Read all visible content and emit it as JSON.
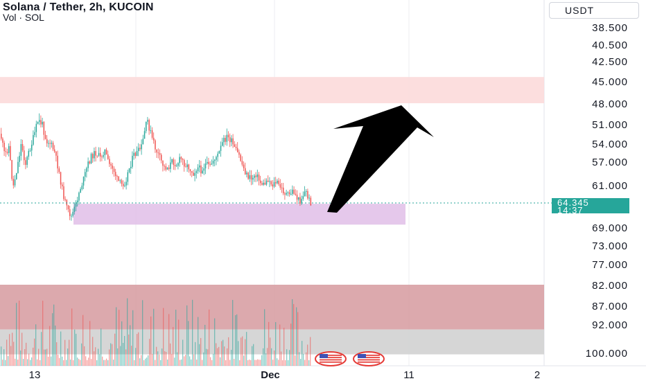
{
  "header": {
    "title": "Solana / Tether, 2h, KUCOIN",
    "subtitle": "Vol · SOL"
  },
  "currency_button": {
    "label": "USDT"
  },
  "price_tag": {
    "price": "64.345",
    "countdown": "14:37"
  },
  "colors": {
    "up": "#26a69a",
    "down": "#ef5350",
    "resistance_zone": "#fcdada",
    "support_zone": "#e1bee7",
    "volume_overlay_red": "#d8a0a4",
    "volume_overlay_grey": "#d2d2d2",
    "arrow": "#000000",
    "price_line": "#26a69a"
  },
  "chart_data": {
    "type": "candlestick",
    "title": "Solana / Tether, 2h, KUCOIN",
    "y_axis_scale": "inverted",
    "y_ticks": [
      "38.500",
      "40.500",
      "42.500",
      "45.000",
      "48.000",
      "51.000",
      "54.000",
      "57.000",
      "61.000",
      "64.345",
      "69.000",
      "73.000",
      "77.000",
      "82.000",
      "87.000",
      "92.000",
      "100.000"
    ],
    "x_ticks": [
      "13",
      "Dec",
      "11",
      "2"
    ],
    "last_price": 64.345,
    "series_path": [
      [
        0,
        52.5
      ],
      [
        6,
        56.0
      ],
      [
        12,
        54.5
      ],
      [
        18,
        61.5
      ],
      [
        24,
        58.0
      ],
      [
        30,
        54.0
      ],
      [
        36,
        57.5
      ],
      [
        42,
        55.0
      ],
      [
        48,
        53.0
      ],
      [
        54,
        50.5
      ],
      [
        60,
        51.0
      ],
      [
        66,
        53.5
      ],
      [
        72,
        54.0
      ],
      [
        78,
        55.5
      ],
      [
        84,
        58.5
      ],
      [
        90,
        62.5
      ],
      [
        96,
        65.5
      ],
      [
        102,
        67.0
      ],
      [
        108,
        65.0
      ],
      [
        114,
        62.0
      ],
      [
        120,
        60.0
      ],
      [
        126,
        57.5
      ],
      [
        132,
        56.0
      ],
      [
        138,
        55.5
      ],
      [
        144,
        56.5
      ],
      [
        150,
        55.0
      ],
      [
        156,
        57.5
      ],
      [
        162,
        58.0
      ],
      [
        168,
        60.0
      ],
      [
        174,
        61.0
      ],
      [
        180,
        60.5
      ],
      [
        186,
        58.0
      ],
      [
        192,
        56.0
      ],
      [
        198,
        55.5
      ],
      [
        204,
        54.5
      ],
      [
        208,
        52.0
      ],
      [
        212,
        50.5
      ],
      [
        218,
        53.0
      ],
      [
        224,
        55.0
      ],
      [
        230,
        56.5
      ],
      [
        236,
        58.0
      ],
      [
        242,
        58.0
      ],
      [
        248,
        57.0
      ],
      [
        254,
        57.5
      ],
      [
        260,
        56.5
      ],
      [
        266,
        57.5
      ],
      [
        272,
        58.0
      ],
      [
        278,
        59.0
      ],
      [
        284,
        58.0
      ],
      [
        290,
        58.5
      ],
      [
        296,
        57.5
      ],
      [
        302,
        58.0
      ],
      [
        308,
        56.5
      ],
      [
        314,
        56.0
      ],
      [
        320,
        54.0
      ],
      [
        326,
        53.0
      ],
      [
        332,
        53.5
      ],
      [
        338,
        55.0
      ],
      [
        344,
        56.0
      ],
      [
        350,
        58.0
      ],
      [
        356,
        59.5
      ],
      [
        362,
        60.0
      ],
      [
        368,
        59.0
      ],
      [
        374,
        60.5
      ],
      [
        380,
        61.0
      ],
      [
        386,
        60.0
      ],
      [
        392,
        61.0
      ],
      [
        398,
        60.5
      ],
      [
        404,
        61.5
      ],
      [
        410,
        62.5
      ],
      [
        416,
        63.0
      ],
      [
        422,
        62.0
      ],
      [
        428,
        63.5
      ],
      [
        432,
        64.0
      ],
      [
        436,
        63.0
      ],
      [
        440,
        62.0
      ],
      [
        444,
        63.5
      ],
      [
        448,
        64.345
      ]
    ],
    "annotations": [
      {
        "type": "zone",
        "name": "resistance",
        "y_range": [
          44.5,
          48.0
        ],
        "color": "#fcdada"
      },
      {
        "type": "zone",
        "name": "support",
        "y_range": [
          64.5,
          68.5
        ],
        "color": "#e1bee7"
      },
      {
        "type": "zone",
        "name": "volume-red",
        "y_range": [
          82.0,
          93.5
        ],
        "color": "#d8a0a4"
      },
      {
        "type": "zone",
        "name": "volume-grey",
        "y_range": [
          93.5,
          100.5
        ],
        "color": "#d2d2d2"
      },
      {
        "type": "arrow",
        "direction": "up",
        "color": "#000000"
      }
    ]
  }
}
